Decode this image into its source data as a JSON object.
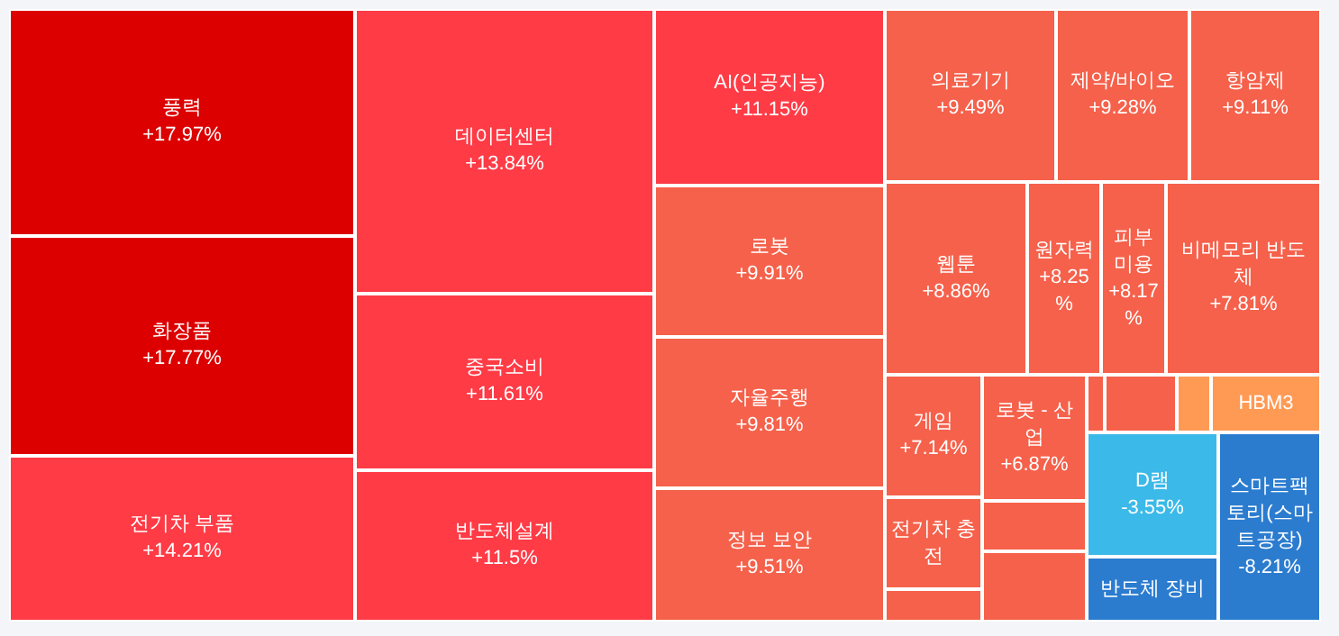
{
  "chart_data": {
    "type": "other",
    "categories": [
      "풍력",
      "화장품",
      "전기차 부품",
      "데이터센터",
      "중국소비",
      "반도체설계",
      "AI(인공지능)",
      "로봇",
      "자율주행",
      "정보 보안",
      "의료기기",
      "제약/바이오",
      "항암제",
      "웹툰",
      "원자력",
      "피부미용",
      "비메모리 반도체",
      "게임",
      "전기차 충전",
      null,
      "로봇 - 산업",
      null,
      null,
      null,
      null,
      null,
      "HBM3",
      "D램",
      "반도체 장비",
      "스마트팩토리(스마트공장)"
    ],
    "values": [
      17.97,
      17.77,
      14.21,
      13.84,
      11.61,
      11.5,
      11.15,
      9.91,
      9.81,
      9.51,
      9.49,
      9.28,
      9.11,
      8.86,
      8.25,
      8.17,
      7.81,
      7.14,
      null,
      null,
      6.87,
      null,
      null,
      null,
      null,
      null,
      null,
      -3.55,
      null,
      -8.21
    ],
    "value_labels": [
      "+17.97%",
      "+17.77%",
      "+14.21%",
      "+13.84%",
      "+11.61%",
      "+11.5%",
      "+11.15%",
      "+9.91%",
      "+9.81%",
      "+9.51%",
      "+9.49%",
      "+9.28%",
      "+9.11%",
      "+8.86%",
      "+8.25%",
      "+8.17%",
      "+7.81%",
      "+7.14%",
      null,
      null,
      "+6.87%",
      null,
      null,
      null,
      null,
      null,
      null,
      "-3.55%",
      null,
      "-8.21%"
    ],
    "colors": [
      "#dc0000",
      "#dc0000",
      "#ff3b46",
      "#ff3b46",
      "#ff3b46",
      "#ff3b46",
      "#ff3b46",
      "#f5614b",
      "#f5614b",
      "#f5614b",
      "#f5614b",
      "#f5614b",
      "#f5614b",
      "#f5614b",
      "#f5614b",
      "#f5614b",
      "#f5614b",
      "#f5614b",
      "#f5614b",
      "#f5614b",
      "#f5614b",
      "#f5614b",
      "#f5614b",
      "#f5614b",
      "#f5614b",
      "#ff9a55",
      "#ff9a55",
      "#3bb9e9",
      "#2b7ccf",
      "#2b7ccf"
    ]
  }
}
